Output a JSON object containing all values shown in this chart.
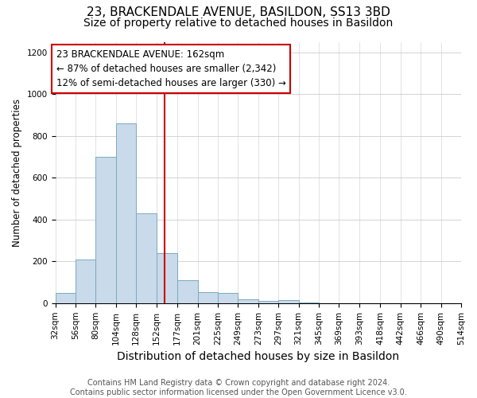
{
  "title": "23, BRACKENDALE AVENUE, BASILDON, SS13 3BD",
  "subtitle": "Size of property relative to detached houses in Basildon",
  "xlabel": "Distribution of detached houses by size in Basildon",
  "ylabel": "Number of detached properties",
  "bin_edges": [
    32,
    56,
    80,
    104,
    128,
    152,
    177,
    201,
    225,
    249,
    273,
    297,
    321,
    345,
    369,
    393,
    418,
    442,
    466,
    490,
    514
  ],
  "bar_heights": [
    50,
    210,
    700,
    860,
    430,
    240,
    110,
    52,
    48,
    20,
    12,
    14,
    4,
    0,
    0,
    0,
    0,
    0,
    0,
    0
  ],
  "bar_color": "#c9daea",
  "bar_edge_color": "#7aaabf",
  "vline_x": 162,
  "vline_color": "#cc0000",
  "annotation_text": "23 BRACKENDALE AVENUE: 162sqm\n← 87% of detached houses are smaller (2,342)\n12% of semi-detached houses are larger (330) →",
  "annotation_box_color": "#ffffff",
  "annotation_box_edge": "#cc0000",
  "ylim": [
    0,
    1250
  ],
  "yticks": [
    0,
    200,
    400,
    600,
    800,
    1000,
    1200
  ],
  "footer_text": "Contains HM Land Registry data © Crown copyright and database right 2024.\nContains public sector information licensed under the Open Government Licence v3.0.",
  "bg_color": "#ffffff",
  "plot_bg_color": "#ffffff",
  "title_fontsize": 11,
  "subtitle_fontsize": 10,
  "xlabel_fontsize": 10,
  "ylabel_fontsize": 8.5,
  "tick_fontsize": 7.5,
  "annotation_fontsize": 8.5,
  "footer_fontsize": 7
}
